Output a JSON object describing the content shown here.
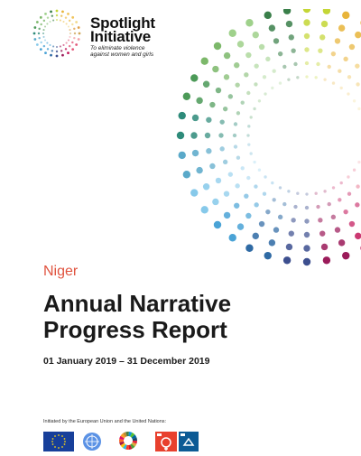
{
  "logo": {
    "title_line1": "Spotlight",
    "title_line2": "Initiative",
    "tagline_line1": "To eliminate violence",
    "tagline_line2": "against women and girls"
  },
  "report": {
    "country": "Niger",
    "title_line1": "Annual Narrative",
    "title_line2": "Progress Report",
    "period": "01 January 2019 – 31 December 2019"
  },
  "footer": {
    "initiated_text": "Initiated by the European Union and the United Nations:"
  },
  "colors": {
    "accent": "#e0533f",
    "ring_palette": [
      "#c4d636",
      "#e8b43a",
      "#f0c45c",
      "#f2d98a",
      "#e0a04a",
      "#d1a85c",
      "#f3a1a8",
      "#e35b7c",
      "#c2185b",
      "#9b1b5a",
      "#3d4f8f",
      "#2f6aa4",
      "#4aa3d6",
      "#86c9ea",
      "#5aa9c9",
      "#2e8b7a",
      "#4c9a58",
      "#7cb86a",
      "#9fd18b",
      "#3a7f4a"
    ]
  }
}
